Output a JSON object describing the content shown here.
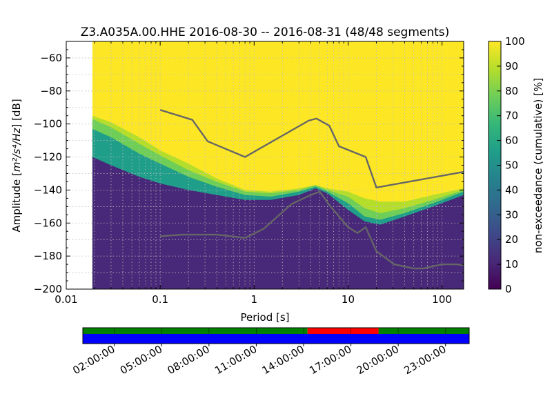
{
  "chart_data": {
    "type": "heatmap",
    "title": "Z3.A035A.00.HHE   2016-08-30 -- 2016-08-31  (48/48 segments)",
    "xlabel": "Period [s]",
    "ylabel_prefix": "Amplitude [",
    "ylabel_math": "m²/s⁴/Hz",
    "ylabel_suffix": "] [dB]",
    "xscale": "log",
    "xlim": [
      0.01,
      170
    ],
    "ylim": [
      -200,
      -50
    ],
    "grid": true,
    "x_ticks": [
      {
        "value": 0.01,
        "label": "0.01"
      },
      {
        "value": 0.1,
        "label": "0.1"
      },
      {
        "value": 1,
        "label": "1"
      },
      {
        "value": 10,
        "label": "10"
      },
      {
        "value": 100,
        "label": "100"
      }
    ],
    "y_ticks": [
      {
        "value": -60,
        "label": "−60"
      },
      {
        "value": -80,
        "label": "−80"
      },
      {
        "value": -100,
        "label": "−100"
      },
      {
        "value": -120,
        "label": "−120"
      },
      {
        "value": -140,
        "label": "−140"
      },
      {
        "value": -160,
        "label": "−160"
      },
      {
        "value": -180,
        "label": "−180"
      },
      {
        "value": -200,
        "label": "−200"
      }
    ],
    "data_start_period": 0.019,
    "colormap": "viridis",
    "colormap_stops": [
      "#440154",
      "#482878",
      "#3e4989",
      "#31688e",
      "#26828e",
      "#1f9e89",
      "#35b779",
      "#6ece58",
      "#b5de2b",
      "#fde725"
    ],
    "colorbar": {
      "label": "non-exceedance (cumulative) [%]",
      "range": [
        0,
        100
      ],
      "ticks": [
        "0",
        "10",
        "20",
        "30",
        "40",
        "50",
        "60",
        "70",
        "80",
        "90",
        "100"
      ]
    },
    "bands": [
      {
        "name": "dark",
        "percent": 10,
        "lower": [
          [
            0.019,
            -120
          ],
          [
            0.03,
            -125
          ],
          [
            0.06,
            -132
          ],
          [
            0.1,
            -136
          ],
          [
            0.2,
            -140
          ],
          [
            0.4,
            -143
          ],
          [
            0.8,
            -146
          ],
          [
            1.5,
            -146
          ],
          [
            3,
            -143
          ],
          [
            4.5,
            -139
          ],
          [
            6,
            -142
          ],
          [
            10,
            -152
          ],
          [
            15,
            -159
          ],
          [
            22,
            -161
          ],
          [
            40,
            -156
          ],
          [
            80,
            -150
          ],
          [
            170,
            -143
          ]
        ]
      },
      {
        "name": "teal",
        "percent": 50,
        "lower": [
          [
            0.019,
            -103
          ],
          [
            0.03,
            -108
          ],
          [
            0.06,
            -118
          ],
          [
            0.1,
            -124
          ],
          [
            0.2,
            -132
          ],
          [
            0.4,
            -138
          ],
          [
            0.8,
            -143
          ],
          [
            1.5,
            -144
          ],
          [
            3,
            -141
          ],
          [
            4.5,
            -138
          ],
          [
            6,
            -141
          ],
          [
            10,
            -148
          ],
          [
            15,
            -156
          ],
          [
            22,
            -158
          ],
          [
            40,
            -154
          ],
          [
            80,
            -148
          ],
          [
            170,
            -141
          ]
        ]
      },
      {
        "name": "green",
        "percent": 75,
        "lower": [
          [
            0.019,
            -97
          ],
          [
            0.03,
            -102
          ],
          [
            0.06,
            -112
          ],
          [
            0.1,
            -119
          ],
          [
            0.2,
            -128
          ],
          [
            0.4,
            -135
          ],
          [
            0.8,
            -141
          ],
          [
            1.5,
            -142
          ],
          [
            3,
            -140
          ],
          [
            4.5,
            -137
          ],
          [
            6,
            -140
          ],
          [
            10,
            -144
          ],
          [
            15,
            -151
          ],
          [
            22,
            -154
          ],
          [
            40,
            -151
          ],
          [
            80,
            -146
          ],
          [
            170,
            -140
          ]
        ]
      },
      {
        "name": "lime",
        "percent": 85,
        "lower": [
          [
            0.019,
            -95
          ],
          [
            0.03,
            -99
          ],
          [
            0.06,
            -108
          ],
          [
            0.1,
            -116
          ],
          [
            0.2,
            -124
          ],
          [
            0.4,
            -133
          ],
          [
            0.8,
            -140
          ],
          [
            1.5,
            -141
          ],
          [
            3,
            -139
          ],
          [
            4.5,
            -137
          ],
          [
            6,
            -139
          ],
          [
            10,
            -141
          ],
          [
            15,
            -145
          ],
          [
            22,
            -147
          ],
          [
            40,
            -147
          ],
          [
            80,
            -143
          ],
          [
            170,
            -139
          ]
        ]
      },
      {
        "name": "yellow",
        "percent": 100,
        "lower": [
          [
            0.019,
            -93
          ],
          [
            0.03,
            -97
          ],
          [
            0.06,
            -105
          ],
          [
            0.1,
            -113
          ],
          [
            0.2,
            -121
          ],
          [
            0.4,
            -131
          ],
          [
            0.8,
            -139
          ],
          [
            1.5,
            -140
          ],
          [
            3,
            -138
          ],
          [
            4.5,
            -136
          ],
          [
            6,
            -137
          ],
          [
            10,
            -137
          ],
          [
            15,
            -136
          ],
          [
            22,
            -135
          ],
          [
            40,
            -138
          ],
          [
            80,
            -141
          ],
          [
            170,
            -138
          ]
        ]
      }
    ],
    "series": [
      {
        "name": "",
        "color": "#666666",
        "points": [
          [
            0.1,
            -91.5
          ],
          [
            0.22,
            -97.5
          ],
          [
            0.32,
            -110.5
          ],
          [
            0.8,
            -120
          ],
          [
            3.8,
            -98
          ],
          [
            4.6,
            -96.7
          ],
          [
            6.3,
            -101
          ],
          [
            8,
            -113.5
          ],
          [
            15.4,
            -120
          ],
          [
            20,
            -138.5
          ],
          [
            170,
            -129
          ]
        ]
      },
      {
        "name": "",
        "color": "#666666",
        "points": [
          [
            0.1,
            -168
          ],
          [
            0.17,
            -167
          ],
          [
            0.4,
            -167
          ],
          [
            0.8,
            -169
          ],
          [
            1.26,
            -163.5
          ],
          [
            2.5,
            -148.5
          ],
          [
            4,
            -143
          ],
          [
            5,
            -141
          ],
          [
            6.3,
            -149
          ],
          [
            10,
            -162.5
          ],
          [
            12.6,
            -166
          ],
          [
            15.4,
            -162.5
          ],
          [
            20,
            -177
          ],
          [
            31,
            -185
          ],
          [
            50,
            -187.5
          ],
          [
            63,
            -187.5
          ],
          [
            100,
            -185
          ],
          [
            140,
            -185
          ],
          [
            170,
            -185.5
          ]
        ]
      }
    ],
    "time_axis": {
      "tick_labels": [
        "02:00:00",
        "05:00:00",
        "08:00:00",
        "11:00:00",
        "14:00:00",
        "17:00:00",
        "20:00:00",
        "23:00:00"
      ],
      "tick_hours": [
        2,
        5,
        8,
        11,
        14,
        17,
        20,
        23
      ],
      "range_hours": [
        0,
        24.5
      ],
      "top_bar": [
        {
          "from": 0,
          "to": 14.25,
          "color": "#008000"
        },
        {
          "from": 14.25,
          "to": 18.75,
          "color": "#ff0000"
        },
        {
          "from": 18.75,
          "to": 24.5,
          "color": "#008000"
        }
      ],
      "bottom_bar": [
        {
          "from": 0,
          "to": 24.5,
          "color": "#0000ff"
        }
      ],
      "segment_lines_hours": [
        2,
        5,
        8,
        11,
        14,
        17,
        20,
        23
      ]
    }
  }
}
